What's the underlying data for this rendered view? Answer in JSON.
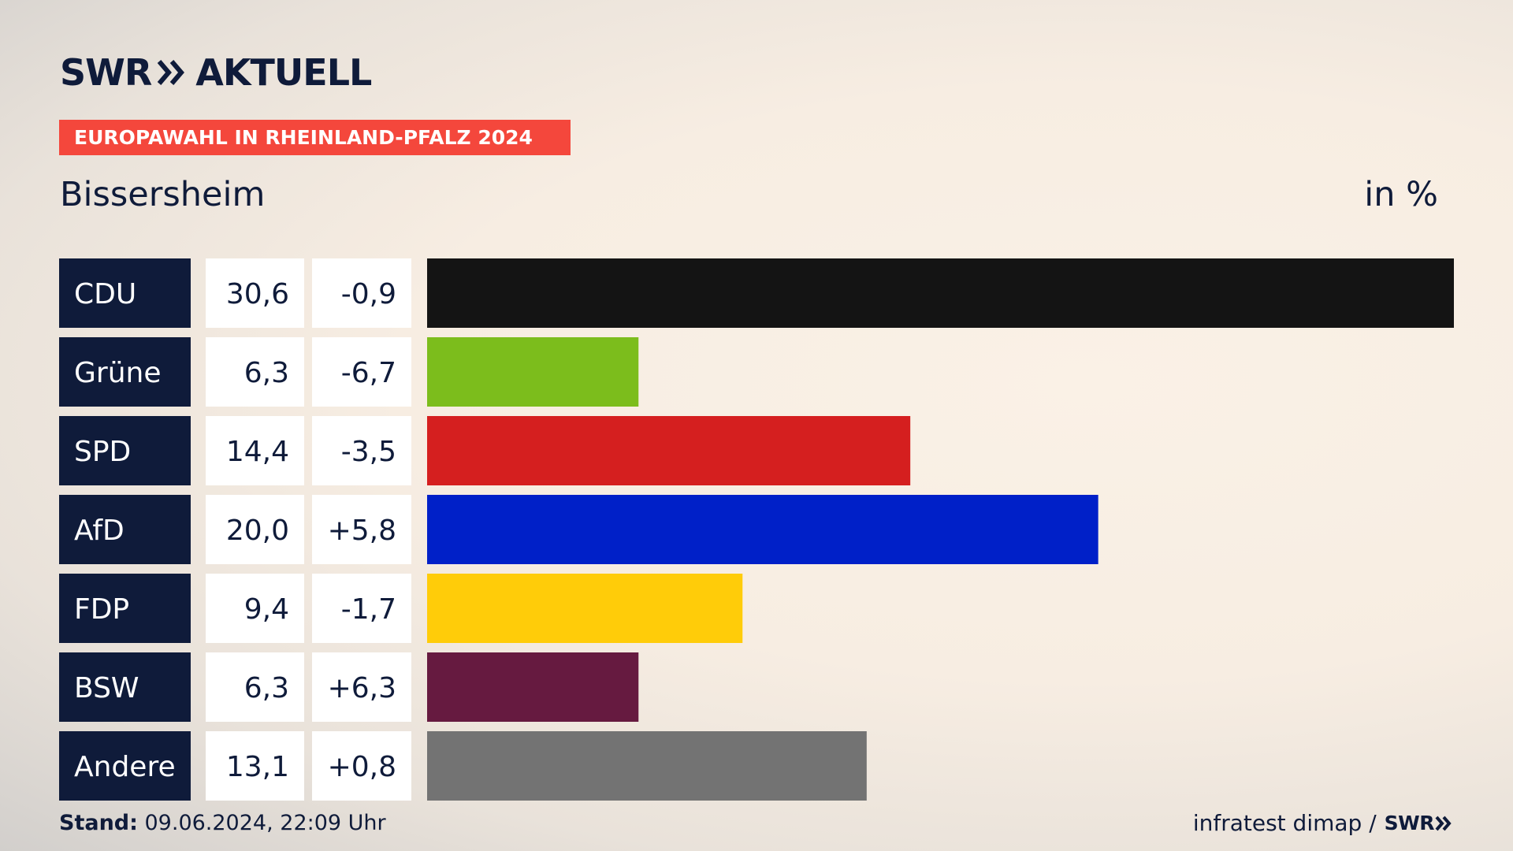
{
  "header": {
    "brand": "SWR",
    "section": "AKTUELL",
    "banner": "EUROPAWAHL IN RHEINLAND-PFALZ 2024",
    "place": "Bissersheim",
    "unit": "in %"
  },
  "colors": {
    "brand_navy": "#0f1b3a",
    "banner_red": "#f4473c"
  },
  "chart_data": {
    "type": "bar",
    "orientation": "horizontal",
    "categories": [
      "CDU",
      "Grüne",
      "SPD",
      "AfD",
      "FDP",
      "BSW",
      "Andere"
    ],
    "values": [
      30.6,
      6.3,
      14.4,
      20.0,
      9.4,
      6.3,
      13.1
    ],
    "value_labels": [
      "30,6",
      "6,3",
      "14,4",
      "20,0",
      "9,4",
      "6,3",
      "13,1"
    ],
    "change_labels": [
      "-0,9",
      "-6,7",
      "-3,5",
      "+5,8",
      "-1,7",
      "+6,3",
      "+0,8"
    ],
    "changes": [
      -0.9,
      -6.7,
      -3.5,
      5.8,
      -1.7,
      6.3,
      0.8
    ],
    "colors": [
      "#141414",
      "#7cbd1c",
      "#d51f1f",
      "#0020c8",
      "#ffcc09",
      "#661a40",
      "#737373"
    ],
    "xlim": [
      0,
      30.6
    ],
    "grid": false,
    "legend": "none"
  },
  "footer": {
    "stand_label": "Stand:",
    "stand_value": " 09.06.2024, 22:09 Uhr",
    "source": "infratest dimap /",
    "source_brand": "SWR"
  }
}
